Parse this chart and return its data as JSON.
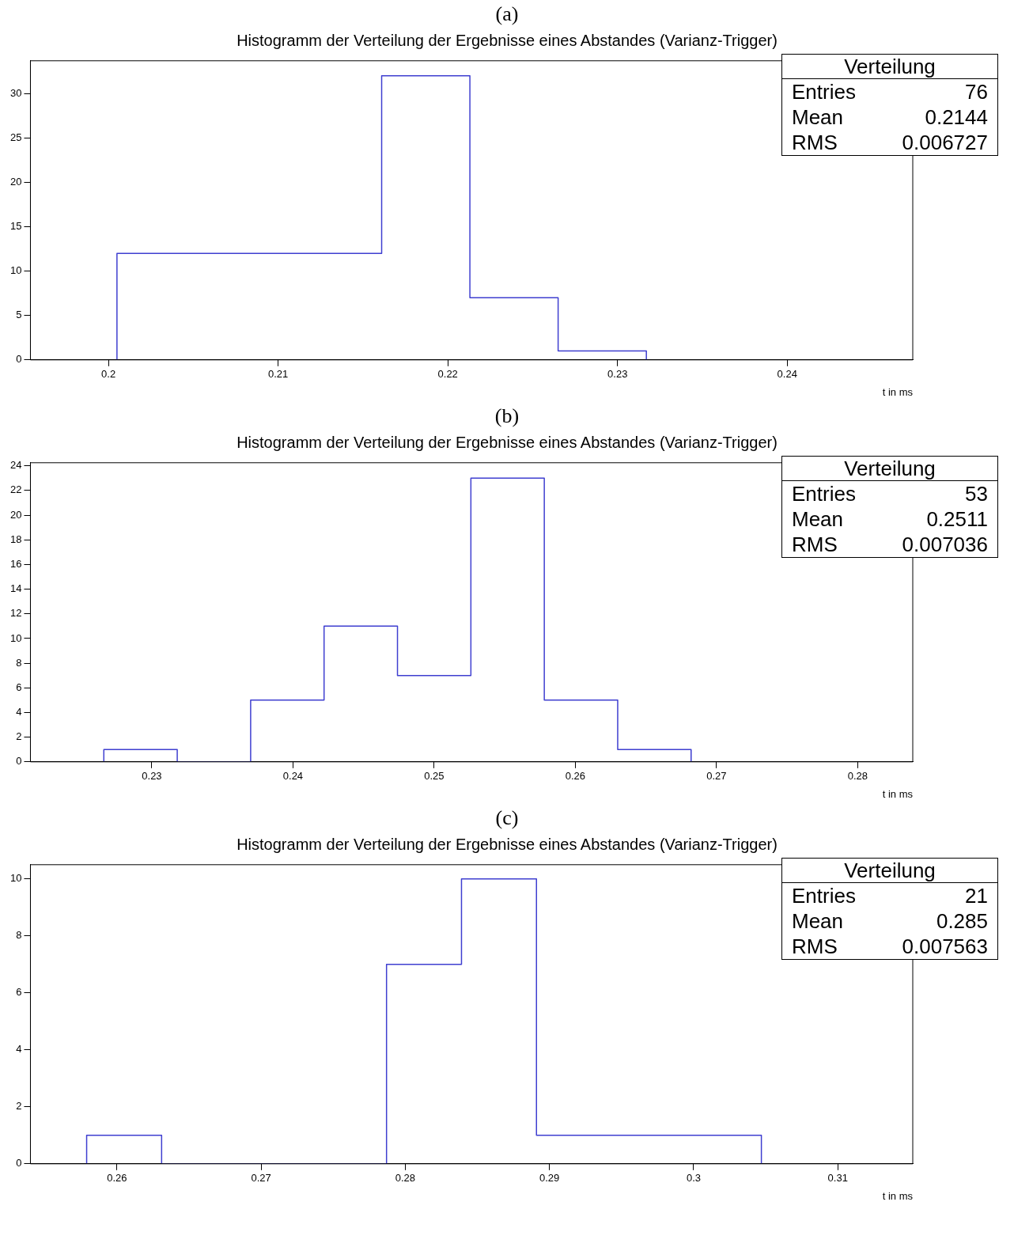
{
  "chart_data": [
    {
      "type": "histogram",
      "subtitle": "(a)",
      "title": "Histogramm der Verteilung der Ergebnisse eines Abstandes (Varianz-Trigger)",
      "xlabel": "t in ms",
      "color": "#3f3fd0",
      "bins": [
        0.2005,
        0.2057,
        0.2109,
        0.2161,
        0.2213,
        0.2265,
        0.2317
      ],
      "values": [
        12,
        12,
        12,
        32,
        7,
        1
      ],
      "xlim": [
        0.1954,
        0.2474
      ],
      "xticks": [
        0.2,
        0.21,
        0.22,
        0.23,
        0.24
      ],
      "ylim": [
        0,
        33.7
      ],
      "yticks": [
        0,
        5,
        10,
        15,
        20,
        25,
        30
      ],
      "annotations": [
        "Verteilung",
        "Entries",
        "76",
        "Mean",
        "0.2144",
        "RMS",
        "0.006727"
      ]
    },
    {
      "type": "histogram",
      "subtitle": "(b)",
      "title": "Histogramm der Verteilung der Ergebnisse eines Abstandes (Varianz-Trigger)",
      "xlabel": "t in ms",
      "color": "#3f3fd0",
      "bins": [
        0.2266,
        0.2318,
        0.237,
        0.2422,
        0.2474,
        0.2526,
        0.2578,
        0.263,
        0.2682
      ],
      "values": [
        1,
        0,
        5,
        11,
        7,
        23,
        5,
        1
      ],
      "xlim": [
        0.2214,
        0.2839
      ],
      "xticks": [
        0.23,
        0.24,
        0.25,
        0.26,
        0.27,
        0.28
      ],
      "ylim": [
        0,
        24.25
      ],
      "yticks": [
        0,
        2,
        4,
        6,
        8,
        10,
        12,
        14,
        16,
        18,
        20,
        22,
        24
      ],
      "annotations": [
        "Verteilung",
        "Entries",
        "53",
        "Mean",
        "0.2511",
        "RMS",
        "0.007036"
      ]
    },
    {
      "type": "histogram",
      "subtitle": "(c)",
      "title": "Histogramm der Verteilung der Ergebnisse eines Abstandes (Varianz-Trigger)",
      "xlabel": "t in ms",
      "color": "#3f3fd0",
      "bins": [
        0.2579,
        0.2631,
        0.2683,
        0.2735,
        0.2787,
        0.2839,
        0.2891,
        0.2943,
        0.2995,
        0.3047
      ],
      "values": [
        1,
        0,
        0,
        0,
        7,
        10,
        1,
        1,
        1
      ],
      "xlim": [
        0.254,
        0.3152
      ],
      "xticks": [
        0.26,
        0.27,
        0.28,
        0.29,
        0.3,
        0.31
      ],
      "ylim": [
        0,
        10.5
      ],
      "yticks": [
        0,
        2,
        4,
        6,
        8,
        10
      ],
      "annotations": [
        "Verteilung",
        "Entries",
        "21",
        "Mean",
        "0.285",
        "RMS",
        "0.007563"
      ]
    }
  ]
}
